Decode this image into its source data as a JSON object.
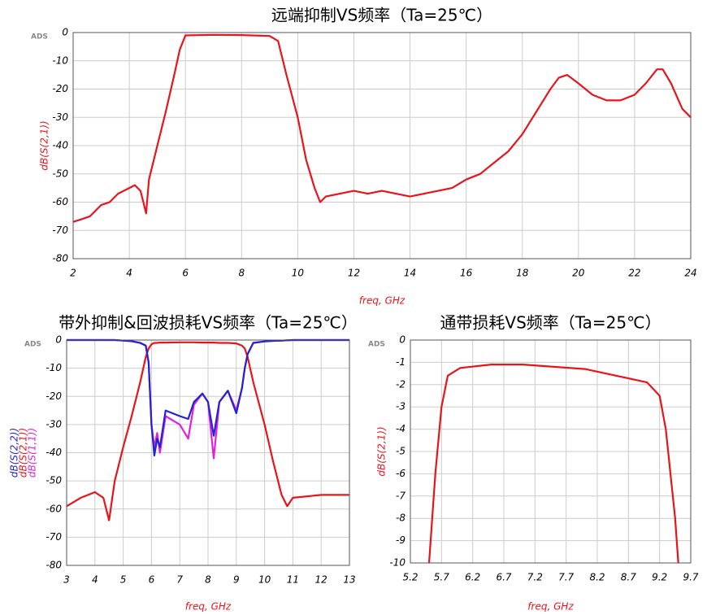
{
  "chart_data": [
    {
      "type": "line",
      "title": "远端抑制VS频率（Ta=25℃）",
      "xlabel": "freq, GHz",
      "watermark": "ADS",
      "x": [
        2.0,
        2.3,
        2.6,
        3.0,
        3.3,
        3.6,
        4.0,
        4.2,
        4.4,
        4.5,
        4.6,
        4.7,
        5.0,
        5.3,
        5.6,
        5.8,
        6.0,
        7.0,
        8.0,
        9.0,
        9.3,
        9.6,
        10.0,
        10.3,
        10.6,
        10.8,
        11.0,
        11.5,
        12,
        12.5,
        13,
        13.5,
        14,
        14.5,
        15,
        15.5,
        16,
        16.5,
        17,
        17.5,
        18,
        18.5,
        19,
        19.3,
        19.6,
        20,
        20.5,
        21,
        21.5,
        22,
        22.4,
        22.8,
        23.0,
        23.3,
        23.7,
        24
      ],
      "series": [
        {
          "name": "dB(S(2,1))",
          "color": "#e8141c",
          "values": [
            -67,
            -66,
            -65,
            -61,
            -60,
            -57,
            -55,
            -54,
            -56,
            -60,
            -64,
            -52,
            -40,
            -28,
            -15,
            -6,
            -1,
            -0.8,
            -0.9,
            -1.2,
            -3,
            -15,
            -30,
            -45,
            -55,
            -60,
            -58,
            -57,
            -56,
            -57,
            -56,
            -57,
            -58,
            -57,
            -56,
            -55,
            -52,
            -50,
            -46,
            -42,
            -36,
            -28,
            -20,
            -16,
            -15,
            -18,
            -22,
            -24,
            -24,
            -22,
            -18,
            -13,
            -13,
            -18,
            -27,
            -30
          ]
        }
      ],
      "xlim": [
        2,
        24
      ],
      "xticks": [
        2,
        4,
        6,
        8,
        10,
        12,
        14,
        16,
        18,
        20,
        22,
        24
      ],
      "ylim": [
        -80,
        0
      ],
      "yticks": [
        0,
        -10,
        -20,
        -30,
        -40,
        -50,
        -60,
        -70,
        -80
      ],
      "grid": true
    },
    {
      "type": "line",
      "title": "带外抑制&回波损耗VS频率（Ta=25℃）",
      "xlabel": "freq, GHz",
      "watermark": "ADS",
      "x": [
        3,
        3.5,
        4,
        4.3,
        4.5,
        4.7,
        5,
        5.3,
        5.6,
        5.8,
        5.9,
        6,
        6.1,
        6.2,
        6.3,
        6.5,
        7,
        7.3,
        7.5,
        7.8,
        8,
        8.2,
        8.4,
        8.7,
        9,
        9.2,
        9.3,
        9.4,
        9.6,
        10,
        10.3,
        10.6,
        10.8,
        11,
        12,
        13
      ],
      "series": [
        {
          "name": "dB(S(2,2))",
          "color": "#2323d2",
          "values": [
            0,
            0,
            0,
            0,
            0,
            0,
            -0.2,
            -0.4,
            -1,
            -2,
            -8,
            -30,
            -41,
            -35,
            -38,
            -25,
            -27,
            -28,
            -22,
            -19,
            -22,
            -34,
            -22,
            -18,
            -26,
            -17,
            -10,
            -5,
            -1,
            -0.5,
            -0.3,
            -0.2,
            -0.1,
            0,
            0,
            0
          ]
        },
        {
          "name": "dB(S(2,1))",
          "color": "#e8141c",
          "values": [
            -59,
            -56,
            -54,
            -56,
            -64,
            -50,
            -38,
            -27,
            -15,
            -6,
            -3,
            -1.5,
            -1,
            -1,
            -0.9,
            -0.9,
            -0.8,
            -0.8,
            -0.8,
            -0.9,
            -0.9,
            -0.9,
            -1,
            -1,
            -1.2,
            -2,
            -3,
            -6,
            -15,
            -30,
            -43,
            -55,
            -59,
            -56,
            -55,
            -55
          ]
        },
        {
          "name": "dB(S(1,1))",
          "color": "#e020e0",
          "values": [
            0,
            0,
            0,
            0,
            0,
            0,
            -0.2,
            -0.4,
            -1,
            -2,
            -8,
            -30,
            -38,
            -33,
            -40,
            -27,
            -30,
            -35,
            -23,
            -19,
            -22,
            -42,
            -22,
            -18,
            -25,
            -17,
            -10,
            -5,
            -1,
            -0.5,
            -0.3,
            -0.2,
            -0.1,
            0,
            0,
            0
          ]
        }
      ],
      "xlim": [
        3,
        13
      ],
      "xticks": [
        3,
        4,
        5,
        6,
        7,
        8,
        9,
        10,
        11,
        12,
        13
      ],
      "ylim": [
        -80,
        0
      ],
      "yticks": [
        0,
        -10,
        -20,
        -30,
        -40,
        -50,
        -60,
        -70,
        -80
      ],
      "grid": true
    },
    {
      "type": "line",
      "title": "通带损耗VS频率（Ta=25℃）",
      "xlabel": "freq, GHz",
      "watermark": "ADS",
      "x": [
        5.5,
        5.6,
        5.7,
        5.8,
        6.0,
        6.5,
        7.0,
        7.5,
        8.0,
        8.5,
        9.0,
        9.2,
        9.3,
        9.45,
        9.5
      ],
      "series": [
        {
          "name": "dB(S(2,1))",
          "color": "#e8141c",
          "values": [
            -10,
            -6,
            -3,
            -1.6,
            -1.25,
            -1.1,
            -1.1,
            -1.2,
            -1.3,
            -1.6,
            -1.9,
            -2.5,
            -4,
            -8,
            -10
          ]
        }
      ],
      "xlim": [
        5.2,
        9.7
      ],
      "xticks": [
        5.2,
        5.7,
        6.2,
        6.7,
        7.2,
        7.7,
        8.2,
        8.7,
        9.2,
        9.7
      ],
      "ylim": [
        -10,
        0
      ],
      "yticks": [
        0,
        -1,
        -2,
        -3,
        -4,
        -5,
        -6,
        -7,
        -8,
        -9,
        -10
      ],
      "grid": true
    }
  ]
}
